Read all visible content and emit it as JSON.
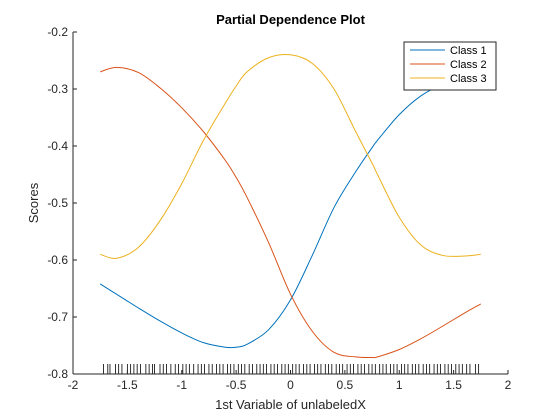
{
  "chart_data": {
    "type": "line",
    "title": "Partial Dependence Plot",
    "xlabel": "1st Variable of unlabeledX",
    "ylabel": "Scores",
    "xlim": [
      -2,
      2
    ],
    "ylim": [
      -0.8,
      -0.2
    ],
    "xticks": [
      -2,
      -1.5,
      -1,
      -0.5,
      0,
      0.5,
      1,
      1.5,
      2
    ],
    "xtick_labels": [
      "-2",
      "-1.5",
      "-1",
      "-0.5",
      "0",
      "0.5",
      "1",
      "1.5",
      "2"
    ],
    "yticks": [
      -0.8,
      -0.7,
      -0.6,
      -0.5,
      -0.4,
      -0.3,
      -0.2
    ],
    "ytick_labels": [
      "-0.8",
      "-0.7",
      "-0.6",
      "-0.5",
      "-0.4",
      "-0.3",
      "-0.2"
    ],
    "grid": false,
    "legend_position": "top-right",
    "x": [
      -1.75,
      -1.6,
      -1.4,
      -1.2,
      -1.0,
      -0.8,
      -0.6,
      -0.5,
      -0.4,
      -0.2,
      0.0,
      0.2,
      0.4,
      0.6,
      0.75,
      0.8,
      1.0,
      1.2,
      1.4,
      1.6,
      1.75
    ],
    "series": [
      {
        "name": "Class 1",
        "color": "#0072BD",
        "values": [
          -0.642,
          -0.66,
          -0.684,
          -0.707,
          -0.728,
          -0.745,
          -0.753,
          -0.753,
          -0.748,
          -0.722,
          -0.67,
          -0.592,
          -0.508,
          -0.445,
          -0.403,
          -0.39,
          -0.345,
          -0.312,
          -0.292,
          -0.282,
          -0.28
        ]
      },
      {
        "name": "Class 2",
        "color": "#D95319",
        "values": [
          -0.27,
          -0.262,
          -0.271,
          -0.298,
          -0.333,
          -0.375,
          -0.425,
          -0.455,
          -0.49,
          -0.57,
          -0.66,
          -0.725,
          -0.762,
          -0.77,
          -0.771,
          -0.77,
          -0.757,
          -0.738,
          -0.716,
          -0.693,
          -0.677
        ]
      },
      {
        "name": "Class 3",
        "color": "#EDB120",
        "values": [
          -0.59,
          -0.597,
          -0.578,
          -0.531,
          -0.466,
          -0.39,
          -0.325,
          -0.295,
          -0.27,
          -0.245,
          -0.24,
          -0.255,
          -0.3,
          -0.375,
          -0.43,
          -0.45,
          -0.525,
          -0.574,
          -0.592,
          -0.593,
          -0.59
        ]
      }
    ],
    "rug_x": [
      -1.72,
      -1.68,
      -1.66,
      -1.61,
      -1.58,
      -1.55,
      -1.5,
      -1.47,
      -1.44,
      -1.41,
      -1.38,
      -1.33,
      -1.3,
      -1.27,
      -1.25,
      -1.2,
      -1.17,
      -1.14,
      -1.1,
      -1.06,
      -1.03,
      -0.99,
      -0.96,
      -0.93,
      -0.89,
      -0.85,
      -0.82,
      -0.79,
      -0.75,
      -0.72,
      -0.68,
      -0.65,
      -0.62,
      -0.58,
      -0.55,
      -0.52,
      -0.48,
      -0.45,
      -0.42,
      -0.38,
      -0.35,
      -0.31,
      -0.28,
      -0.25,
      -0.22,
      -0.18,
      -0.15,
      -0.12,
      -0.08,
      -0.05,
      -0.02,
      0.02,
      0.05,
      0.08,
      0.12,
      0.15,
      0.18,
      0.22,
      0.25,
      0.28,
      0.32,
      0.35,
      0.38,
      0.42,
      0.45,
      0.48,
      0.52,
      0.55,
      0.58,
      0.62,
      0.65,
      0.68,
      0.72,
      0.75,
      0.78,
      0.82,
      0.85,
      0.88,
      0.92,
      0.95,
      0.98,
      1.02,
      1.05,
      1.08,
      1.12,
      1.15,
      1.18,
      1.22,
      1.25,
      1.28,
      1.32,
      1.35,
      1.38,
      1.42,
      1.45,
      1.48,
      1.52,
      1.55,
      1.58,
      1.62,
      1.65,
      1.7,
      1.73
    ]
  }
}
